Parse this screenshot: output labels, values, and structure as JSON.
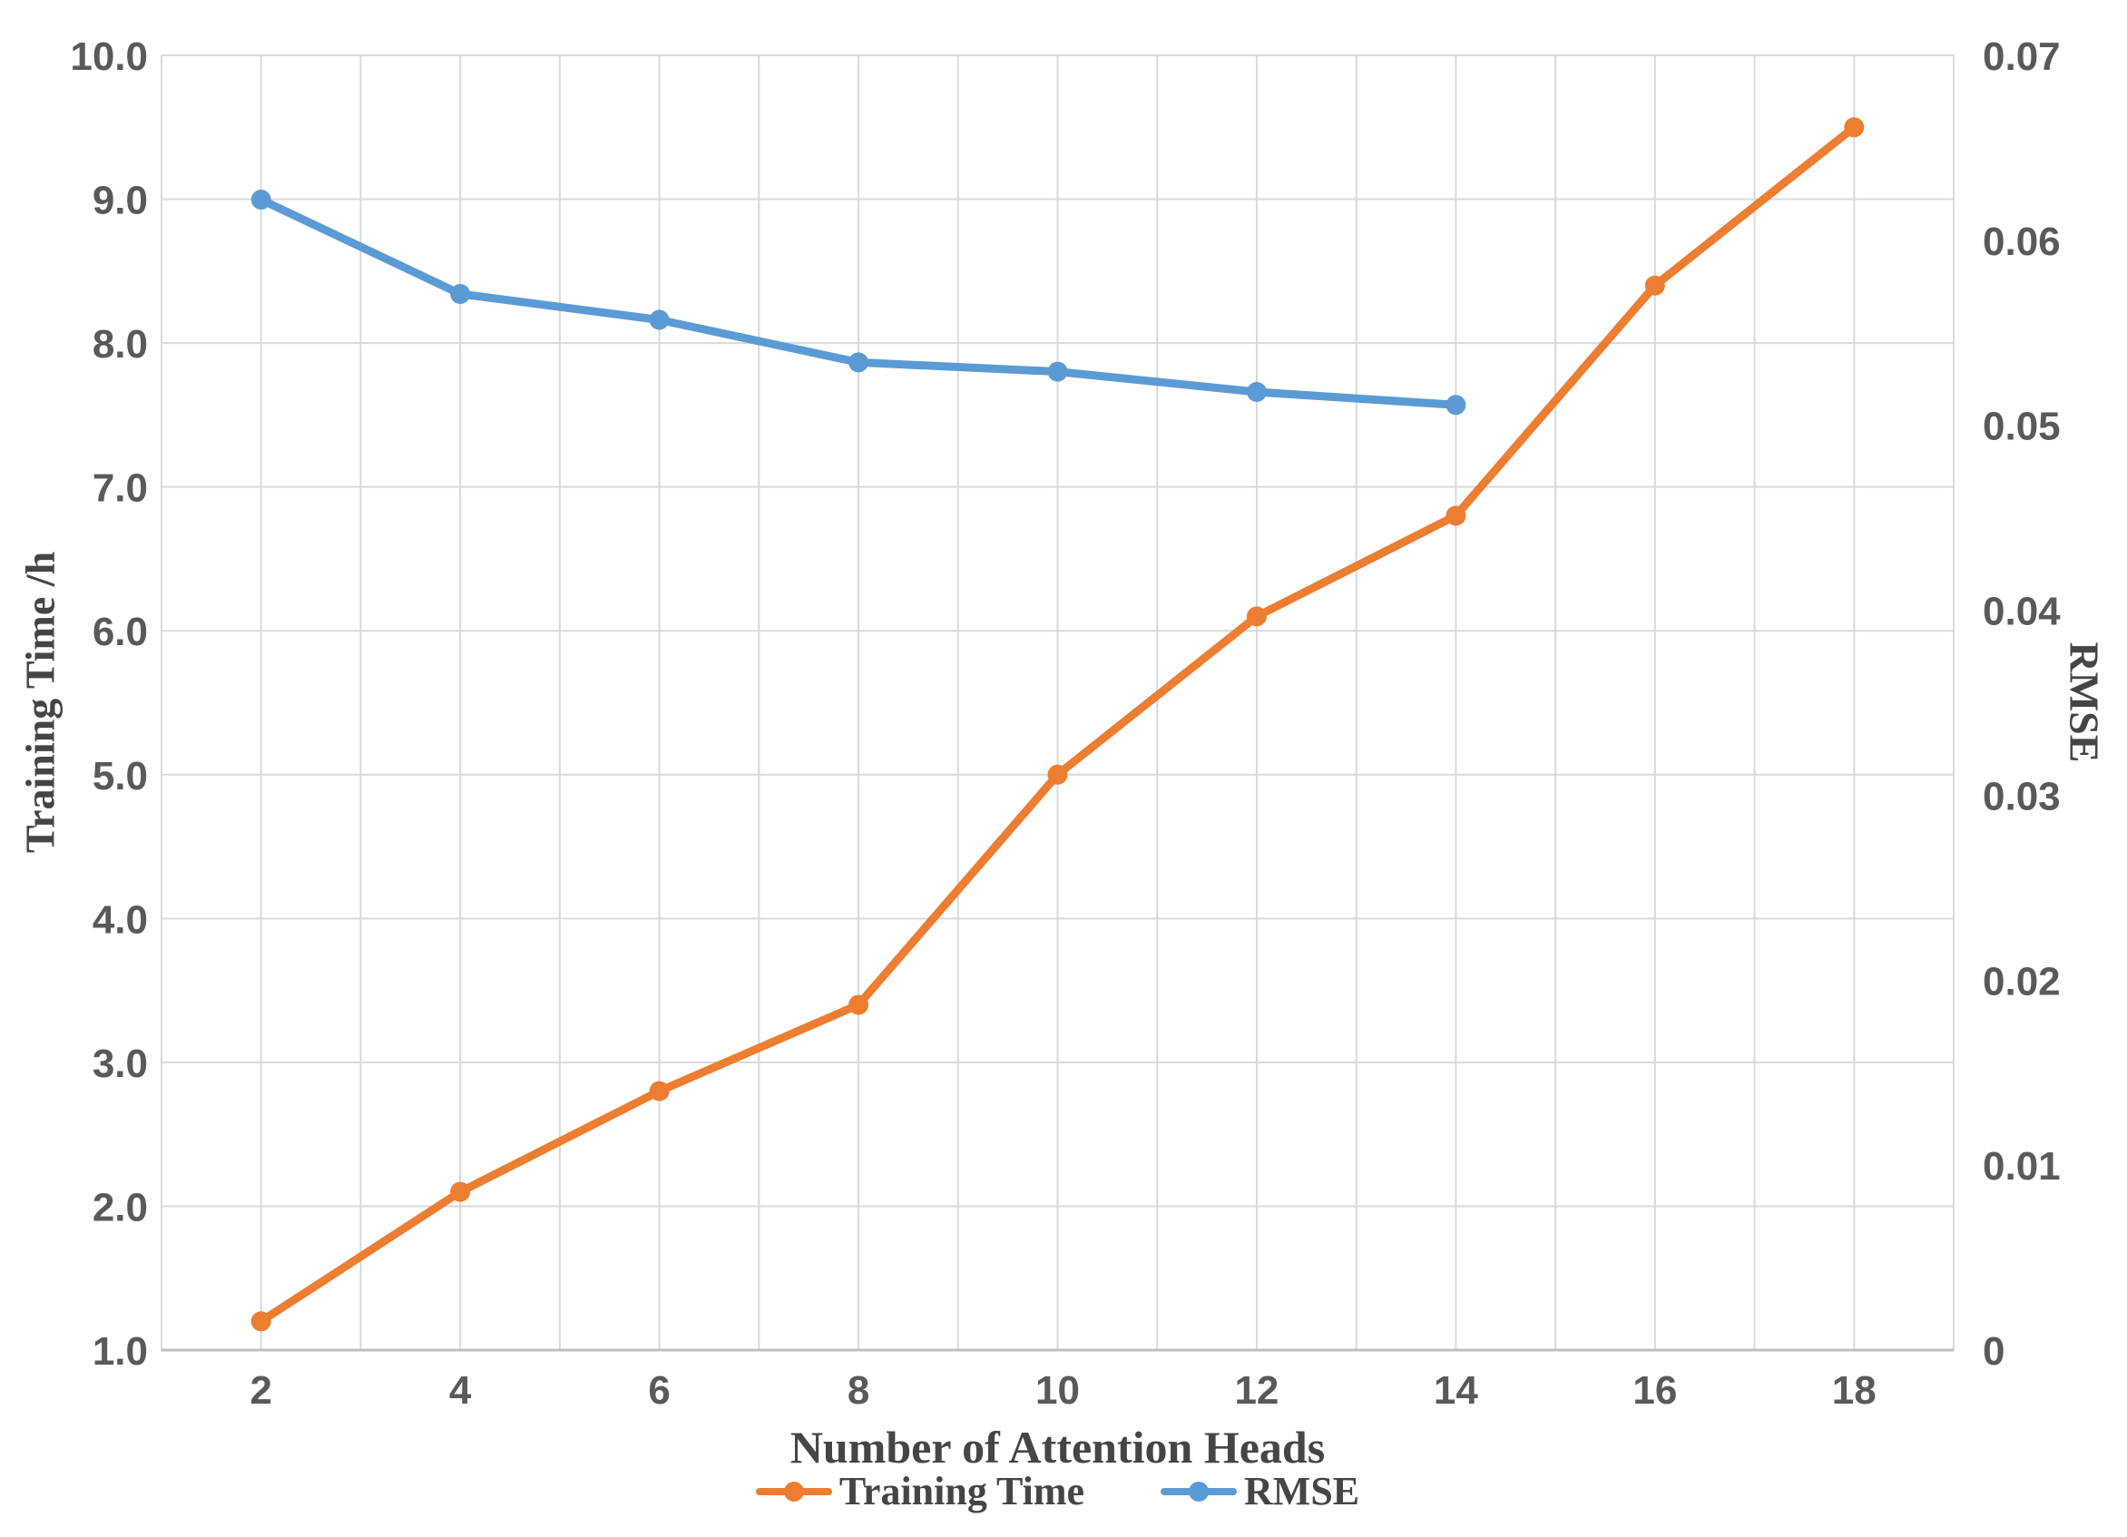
{
  "chart_data": {
    "type": "line",
    "title": "",
    "x": {
      "label": "Number of Attention Heads",
      "ticks": [
        2,
        4,
        6,
        8,
        10,
        12,
        14,
        16,
        18
      ],
      "tick_labels": [
        "2",
        "4",
        "6",
        "8",
        "10",
        "12",
        "14",
        "16",
        "18"
      ],
      "range": [
        1,
        19
      ],
      "minor_grid_step": 1
    },
    "y_left": {
      "label": "Training Time /h",
      "min": 1.0,
      "max": 10.0,
      "step": 1.0,
      "tick_labels": [
        "10.0",
        "9.0",
        "8.0",
        "7.0",
        "6.0",
        "5.0",
        "4.0",
        "3.0",
        "2.0",
        "1.0"
      ]
    },
    "y_right": {
      "label": "RMSE",
      "min": 0,
      "max": 0.07,
      "step": 0.01,
      "tick_labels": [
        "0.07",
        "0.06",
        "0.05",
        "0.04",
        "0.03",
        "0.02",
        "0.01",
        "0"
      ]
    },
    "series": [
      {
        "name": "Training Time",
        "axis": "left",
        "color": "#ED7D31",
        "x": [
          2,
          4,
          6,
          8,
          10,
          12,
          14,
          16,
          18
        ],
        "values": [
          1.2,
          2.1,
          2.8,
          3.4,
          5.0,
          6.1,
          6.8,
          8.4,
          9.5
        ]
      },
      {
        "name": "RMSE",
        "axis": "right",
        "color": "#5B9BD5",
        "x": [
          2,
          4,
          6,
          8,
          10,
          12,
          14
        ],
        "values": [
          0.0622,
          0.0571,
          0.0557,
          0.0534,
          0.0529,
          0.0518,
          0.0511
        ]
      }
    ],
    "legend": {
      "position": "bottom",
      "entries": [
        "Training Time",
        "RMSE"
      ]
    },
    "grid": {
      "horizontal": true,
      "vertical": true,
      "color": "#D9D9D9",
      "axis_line_color": "#BFBFBF"
    },
    "tick_text_color": "#595959",
    "background": "#FFFFFF"
  }
}
